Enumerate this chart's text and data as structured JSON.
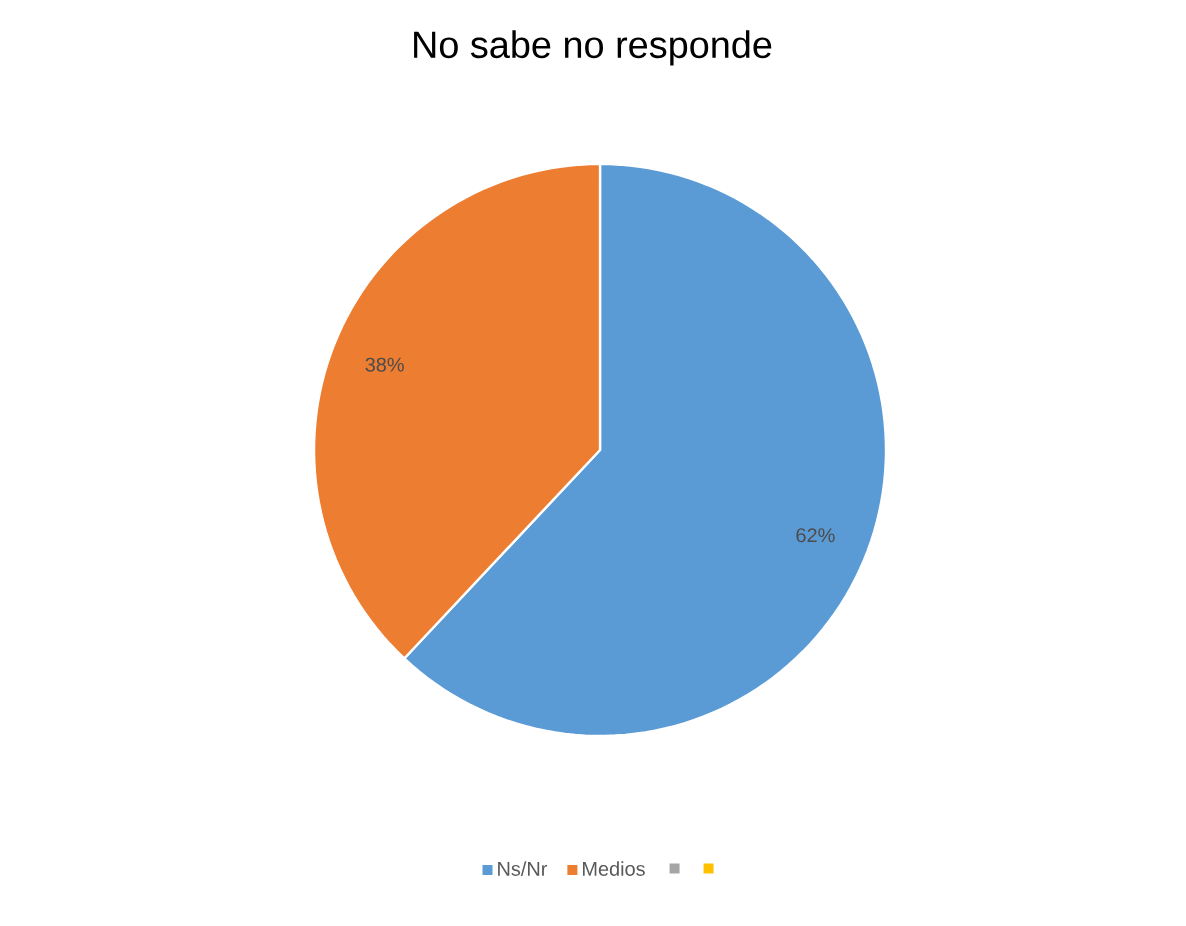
{
  "chart_data": {
    "type": "pie",
    "title": "No sabe no responde",
    "categories": [
      "Ns/Nr",
      "Medios",
      null,
      null
    ],
    "values": [
      62,
      38,
      0,
      0
    ],
    "value_labels": [
      "62%",
      "38%",
      null,
      null
    ],
    "colors": [
      "#5b9bd5",
      "#ed7d31",
      "#a5a5a5",
      "#ffc000"
    ],
    "legend": "bottom"
  }
}
